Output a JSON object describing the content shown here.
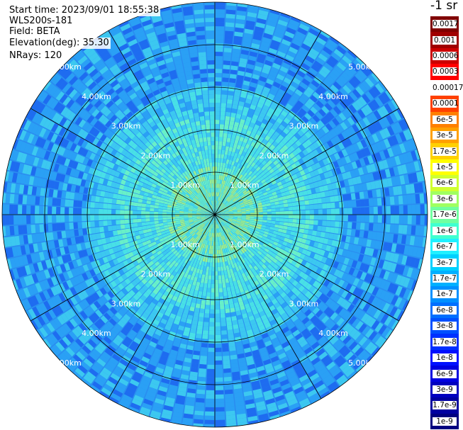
{
  "header": {
    "start_time": "Start time: 2023/09/01 18:55:38",
    "instrument": "WLS200s-181",
    "field": "Field: BETA",
    "elevation": "Elevation(deg): 35.30",
    "nrays": "NRays: 120"
  },
  "colorbar": {
    "unit": "-1 sr",
    "labels": [
      "0.0017",
      "0.001",
      "0.0006",
      "0.0003",
      "0.00017",
      "0.0001",
      "6e-5",
      "3e-5",
      "1.7e-5",
      "1e-5",
      "6e-6",
      "3e-6",
      "1.7e-6",
      "1e-6",
      "6e-7",
      "3e-7",
      "1.7e-7",
      "1e-7",
      "6e-8",
      "3e-8",
      "1.7e-8",
      "1e-8",
      "6e-9",
      "3e-9",
      "1.7e-9",
      "1e-9"
    ],
    "colors": [
      "#800000",
      "#a00000",
      "#cc0000",
      "#ff0000",
      "#ffffff",
      "#ff4000",
      "#ff8000",
      "#ffa000",
      "#ffd000",
      "#ffff00",
      "#d0ff30",
      "#a0ff60",
      "#70ffa0",
      "#40ffd0",
      "#20f0ff",
      "#00d0ff",
      "#00b0ff",
      "#0090ff",
      "#0070ff",
      "#0050ff",
      "#0030ff",
      "#0010ff",
      "#0000e0",
      "#0000c0",
      "#0000a0",
      "#000080"
    ]
  },
  "ppi": {
    "nrays": 120,
    "range_rings": [
      "1.00km",
      "2.00km",
      "3.00km",
      "4.00km",
      "5.00km"
    ],
    "data_colors": [
      "#1e6cf0",
      "#2aa0f5",
      "#3cc8f0",
      "#48e0e6",
      "#68f0c8",
      "#9cf08c"
    ]
  }
}
